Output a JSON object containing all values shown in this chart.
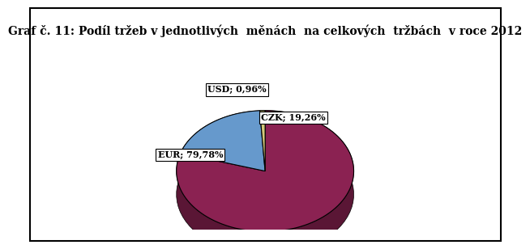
{
  "title": "Graf č. 11: Podíl tržeb v jednotlivých  měnách  na celkových  tržbách  v roce 2012",
  "slices": [
    {
      "label": "EUR; 79,78%",
      "value": 79.78,
      "color": "#8B2252"
    },
    {
      "label": "CZK; 19,26%",
      "value": 19.26,
      "color": "#6699CC"
    },
    {
      "label": "USD; 0,96%",
      "value": 0.96,
      "color": "#D4C97A"
    }
  ],
  "background_color": "#FFFFFF",
  "border_color": "#000000",
  "title_fontsize": 10,
  "label_fontsize": 8.5,
  "start_angle": 90,
  "shadow": true
}
